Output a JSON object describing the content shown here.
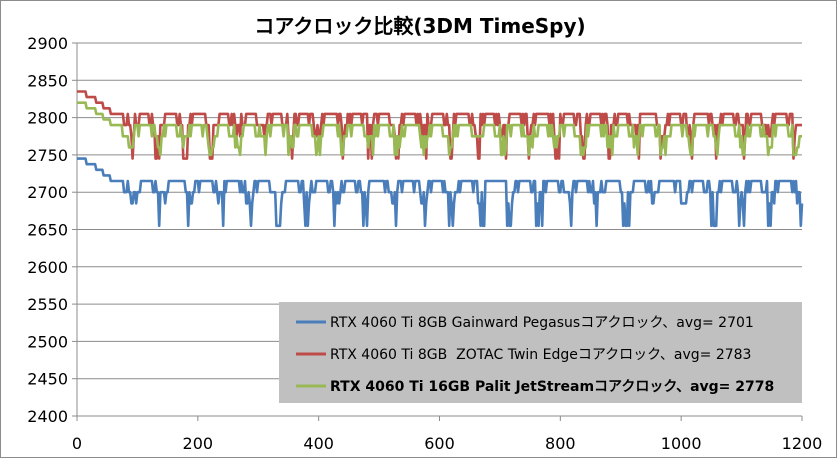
{
  "chart_data": {
    "type": "line",
    "title": "コアクロック比較(3DM TimeSpy)",
    "xlabel": "",
    "ylabel": "",
    "xlim": [
      0,
      1200
    ],
    "ylim": [
      2400,
      2900
    ],
    "x_ticks": [
      0,
      200,
      400,
      600,
      800,
      1000,
      1200
    ],
    "y_ticks": [
      2400,
      2450,
      2500,
      2550,
      2600,
      2650,
      2700,
      2750,
      2800,
      2850,
      2900
    ],
    "grid": {
      "horizontal": true,
      "vertical": false
    },
    "legend_position": "bottom-right",
    "series": [
      {
        "name": "RTX 4060 Ti 8GB Gainward Pegasusコアクロック、avg= 2701",
        "color": "#4a7ebb",
        "bold": false,
        "start": 2745,
        "base": 2701,
        "high": 2715,
        "low": 2655,
        "amplitude": 20,
        "period": 48
      },
      {
        "name": "RTX 4060 Ti 8GB  ZOTAC Twin Edgeコアクロック、avg= 2783",
        "color": "#be4b48",
        "bold": false,
        "start": 2835,
        "base": 2783,
        "high": 2805,
        "low": 2745,
        "amplitude": 20,
        "period": 44
      },
      {
        "name": "RTX 4060 Ti 16GB Palit JetStreamコアクロック、avg= 2778",
        "color": "#98b954",
        "bold": true,
        "start": 2820,
        "base": 2778,
        "high": 2790,
        "low": 2750,
        "amplitude": 15,
        "period": 44
      }
    ]
  }
}
